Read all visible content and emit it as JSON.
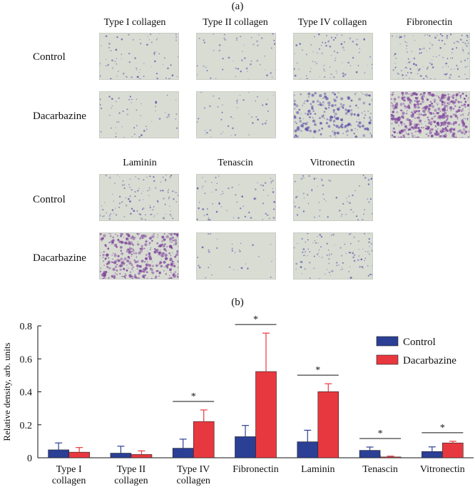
{
  "panel_a": {
    "label": "(a)",
    "columns_top": [
      "Type I collagen",
      "Type II collagen",
      "Type IV collagen",
      "Fibronectin"
    ],
    "columns_bottom": [
      "Laminin",
      "Tenascin",
      "Vitronectin"
    ],
    "rows": [
      "Control",
      "Dacarbazine"
    ],
    "colors": {
      "background": "#d8dcd3",
      "stain": "#5a4fa8",
      "stain_dense": "#7a3d9a"
    },
    "micrographs": [
      {
        "id": "type-i-control",
        "density": 0.05
      },
      {
        "id": "type-i-dacarbazine",
        "density": 0.03
      },
      {
        "id": "type-ii-control",
        "density": 0.03
      },
      {
        "id": "type-ii-dacarbazine",
        "density": 0.02
      },
      {
        "id": "type-iv-control",
        "density": 0.06
      },
      {
        "id": "type-iv-dacarbazine",
        "density": 0.22
      },
      {
        "id": "fibronectin-control",
        "density": 0.13
      },
      {
        "id": "fibronectin-dacarbazine",
        "density": 0.52
      },
      {
        "id": "laminin-control",
        "density": 0.1
      },
      {
        "id": "laminin-dacarbazine",
        "density": 0.4
      },
      {
        "id": "tenascin-control",
        "density": 0.045
      },
      {
        "id": "tenascin-dacarbazine",
        "density": 0.005
      },
      {
        "id": "vitronectin-control",
        "density": 0.04
      },
      {
        "id": "vitronectin-dacarbazine",
        "density": 0.09
      }
    ]
  },
  "panel_b": {
    "label": "(b)"
  },
  "chart_data": {
    "type": "bar",
    "ylabel": "Relative density, arb. units",
    "xlabel": "",
    "ylim": [
      0,
      0.8
    ],
    "yticks": [
      "0",
      "0.2",
      "0.4",
      "0.6",
      "0.8"
    ],
    "ytick_values": [
      0,
      0.2,
      0.4,
      0.6,
      0.8
    ],
    "categories": [
      [
        "Type I",
        "collagen"
      ],
      [
        "Type II",
        "collagen"
      ],
      [
        "Type IV",
        "collagen"
      ],
      [
        "Fibronectin"
      ],
      [
        "Laminin"
      ],
      [
        "Tenascin"
      ],
      [
        "Vitronectin"
      ]
    ],
    "series": [
      {
        "name": "Control",
        "color": "#2b3f95",
        "values": [
          0.048,
          0.028,
          0.058,
          0.128,
          0.097,
          0.045,
          0.038
        ],
        "errors": [
          0.042,
          0.042,
          0.055,
          0.068,
          0.07,
          0.02,
          0.028
        ]
      },
      {
        "name": "Dacarbazine",
        "color": "#e8383f",
        "values": [
          0.034,
          0.02,
          0.22,
          0.523,
          0.401,
          0.005,
          0.09
        ],
        "errors": [
          0.028,
          0.022,
          0.07,
          0.233,
          0.048,
          0.005,
          0.01
        ]
      }
    ],
    "significance": [
      {
        "category_index": 2,
        "label": "*"
      },
      {
        "category_index": 3,
        "label": "*"
      },
      {
        "category_index": 4,
        "label": "*"
      },
      {
        "category_index": 5,
        "label": "*"
      },
      {
        "category_index": 6,
        "label": "*"
      }
    ],
    "legend_position": "top-right",
    "grid": false
  }
}
